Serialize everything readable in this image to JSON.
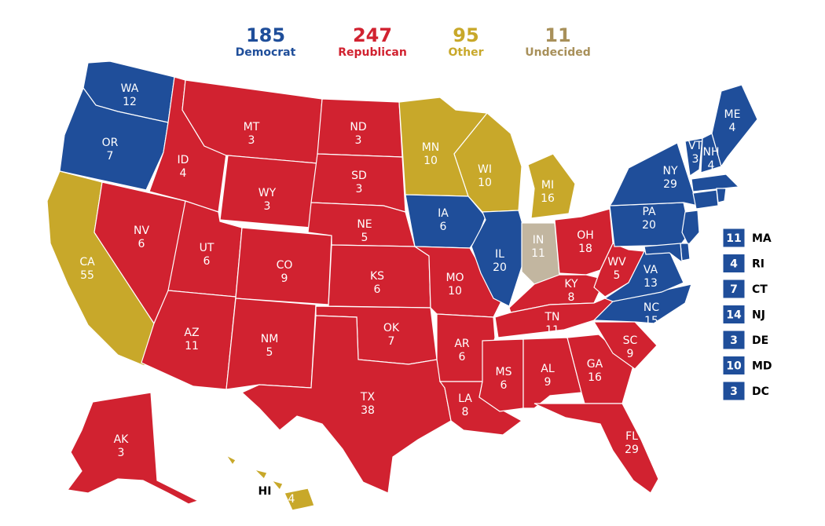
{
  "colors": {
    "democrat": "#1f4e9a",
    "republican": "#d12230",
    "other": "#c8a82a",
    "undecided": "#c2b6a0",
    "border": "#ffffff"
  },
  "legend": {
    "democrat": {
      "count": "185",
      "label": "Democrat"
    },
    "republican": {
      "count": "247",
      "label": "Republican"
    },
    "other": {
      "count": "95",
      "label": "Other"
    },
    "undecided": {
      "count": "11",
      "label": "Undecided"
    }
  },
  "states": [
    {
      "abbr": "WA",
      "votes": "12",
      "party": "democrat"
    },
    {
      "abbr": "OR",
      "votes": "7",
      "party": "democrat"
    },
    {
      "abbr": "CA",
      "votes": "55",
      "party": "other"
    },
    {
      "abbr": "NV",
      "votes": "6",
      "party": "republican"
    },
    {
      "abbr": "ID",
      "votes": "4",
      "party": "republican"
    },
    {
      "abbr": "MT",
      "votes": "3",
      "party": "republican"
    },
    {
      "abbr": "WY",
      "votes": "3",
      "party": "republican"
    },
    {
      "abbr": "UT",
      "votes": "6",
      "party": "republican"
    },
    {
      "abbr": "AZ",
      "votes": "11",
      "party": "republican"
    },
    {
      "abbr": "CO",
      "votes": "9",
      "party": "republican"
    },
    {
      "abbr": "NM",
      "votes": "5",
      "party": "republican"
    },
    {
      "abbr": "ND",
      "votes": "3",
      "party": "republican"
    },
    {
      "abbr": "SD",
      "votes": "3",
      "party": "republican"
    },
    {
      "abbr": "NE",
      "votes": "5",
      "party": "republican"
    },
    {
      "abbr": "KS",
      "votes": "6",
      "party": "republican"
    },
    {
      "abbr": "OK",
      "votes": "7",
      "party": "republican"
    },
    {
      "abbr": "TX",
      "votes": "38",
      "party": "republican"
    },
    {
      "abbr": "MN",
      "votes": "10",
      "party": "other"
    },
    {
      "abbr": "IA",
      "votes": "6",
      "party": "democrat"
    },
    {
      "abbr": "MO",
      "votes": "10",
      "party": "republican"
    },
    {
      "abbr": "AR",
      "votes": "6",
      "party": "republican"
    },
    {
      "abbr": "LA",
      "votes": "8",
      "party": "republican"
    },
    {
      "abbr": "WI",
      "votes": "10",
      "party": "other"
    },
    {
      "abbr": "IL",
      "votes": "20",
      "party": "democrat"
    },
    {
      "abbr": "MI",
      "votes": "16",
      "party": "other"
    },
    {
      "abbr": "IN",
      "votes": "11",
      "party": "undecided"
    },
    {
      "abbr": "OH",
      "votes": "18",
      "party": "republican"
    },
    {
      "abbr": "KY",
      "votes": "8",
      "party": "republican"
    },
    {
      "abbr": "TN",
      "votes": "11",
      "party": "republican"
    },
    {
      "abbr": "MS",
      "votes": "6",
      "party": "republican"
    },
    {
      "abbr": "AL",
      "votes": "9",
      "party": "republican"
    },
    {
      "abbr": "GA",
      "votes": "16",
      "party": "republican"
    },
    {
      "abbr": "FL",
      "votes": "29",
      "party": "republican"
    },
    {
      "abbr": "SC",
      "votes": "9",
      "party": "republican"
    },
    {
      "abbr": "NC",
      "votes": "15",
      "party": "democrat"
    },
    {
      "abbr": "VA",
      "votes": "13",
      "party": "democrat"
    },
    {
      "abbr": "WV",
      "votes": "5",
      "party": "republican"
    },
    {
      "abbr": "PA",
      "votes": "20",
      "party": "democrat"
    },
    {
      "abbr": "NY",
      "votes": "29",
      "party": "democrat"
    },
    {
      "abbr": "VT",
      "votes": "3",
      "party": "democrat"
    },
    {
      "abbr": "NH",
      "votes": "4",
      "party": "democrat"
    },
    {
      "abbr": "ME",
      "votes": "4",
      "party": "democrat"
    },
    {
      "abbr": "AK",
      "votes": "3",
      "party": "republican"
    },
    {
      "abbr": "HI",
      "votes": "4",
      "party": "other"
    }
  ],
  "small_states": [
    {
      "abbr": "MA",
      "votes": "11"
    },
    {
      "abbr": "RI",
      "votes": "4"
    },
    {
      "abbr": "CT",
      "votes": "7"
    },
    {
      "abbr": "NJ",
      "votes": "14"
    },
    {
      "abbr": "DE",
      "votes": "3"
    },
    {
      "abbr": "MD",
      "votes": "10"
    },
    {
      "abbr": "DC",
      "votes": "3"
    }
  ]
}
